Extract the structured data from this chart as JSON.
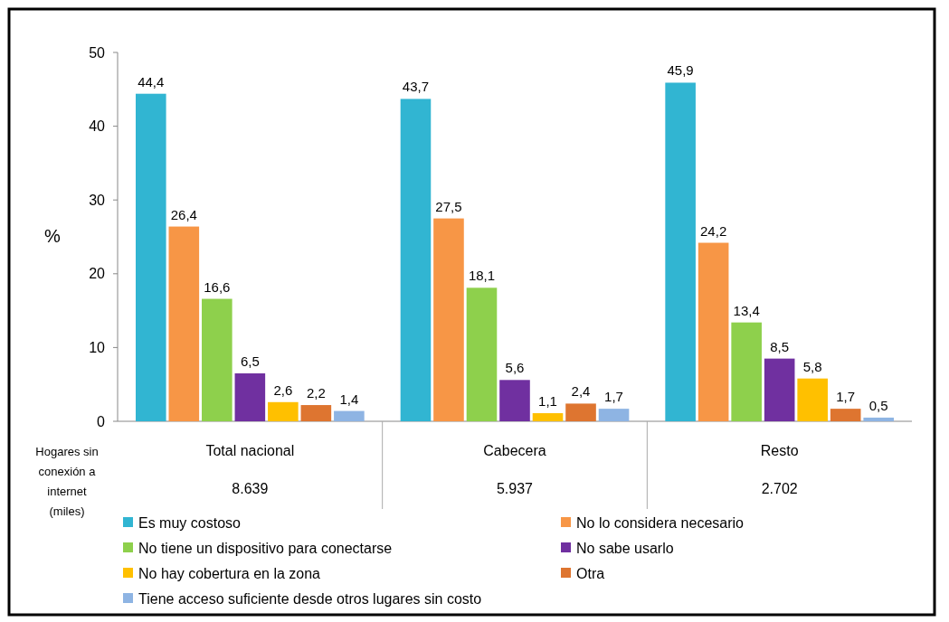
{
  "chart_data": {
    "type": "bar",
    "ylabel": "%",
    "categories": [
      "Total nacional",
      "Cabecera",
      "Resto"
    ],
    "ylim": [
      0,
      50
    ],
    "yticks": [
      0,
      10,
      20,
      30,
      40,
      50
    ],
    "grid": false,
    "legend": "bottom",
    "series": [
      {
        "name": "Es muy costoso",
        "color": "#31b5d2",
        "values": [
          44.4,
          43.7,
          45.9
        ],
        "value_labels": [
          "44,4",
          "43,7",
          "45,9"
        ]
      },
      {
        "name": "No lo considera necesario",
        "color": "#f79646",
        "values": [
          26.4,
          27.5,
          24.2
        ],
        "value_labels": [
          "26,4",
          "27,5",
          "24,2"
        ]
      },
      {
        "name": "No tiene un dispositivo para conectarse",
        "color": "#8ed04c",
        "values": [
          16.6,
          18.1,
          13.4
        ],
        "value_labels": [
          "16,6",
          "18,1",
          "13,4"
        ]
      },
      {
        "name": "No sabe usarlo",
        "color": "#7030a0",
        "values": [
          6.5,
          5.6,
          8.5
        ],
        "value_labels": [
          "6,5",
          "5,6",
          "8,5"
        ]
      },
      {
        "name": "No hay cobertura en la zona",
        "color": "#ffc000",
        "values": [
          2.6,
          1.1,
          5.8
        ],
        "value_labels": [
          "2,6",
          "1,1",
          "5,8"
        ]
      },
      {
        "name": "Otra",
        "color": "#de7530",
        "values": [
          2.2,
          2.4,
          1.7
        ],
        "value_labels": [
          "2,2",
          "2,4",
          "1,7"
        ]
      },
      {
        "name": "Tiene acceso suficiente desde otros lugares sin costo",
        "color": "#8eb4e3",
        "values": [
          1.4,
          1.7,
          0.5
        ],
        "value_labels": [
          "1,4",
          "1,7",
          "0,5"
        ]
      }
    ],
    "annotations": [
      "Hogares sin conexión a internet (miles)",
      "8.639",
      "5.937",
      "2.702"
    ]
  }
}
